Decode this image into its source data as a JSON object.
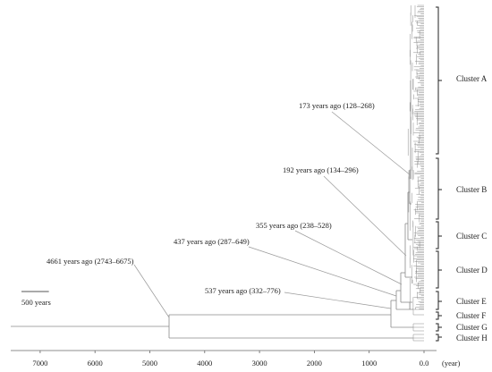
{
  "timeline": {
    "ticks": [
      {
        "value": 7000,
        "label": "7000"
      },
      {
        "value": 6000,
        "label": "6000"
      },
      {
        "value": 5000,
        "label": "5000"
      },
      {
        "value": 4000,
        "label": "4000"
      },
      {
        "value": 3000,
        "label": "3000"
      },
      {
        "value": 2000,
        "label": "2000"
      },
      {
        "value": 1000,
        "label": "1000"
      },
      {
        "value": 0,
        "label": "0.0"
      }
    ],
    "unit_label": "(year)"
  },
  "scale_bar": {
    "years": 500,
    "label": "500 years"
  },
  "clusters": [
    {
      "id": "A",
      "label": "Cluster A"
    },
    {
      "id": "B",
      "label": "Cluster B"
    },
    {
      "id": "C",
      "label": "Cluster C"
    },
    {
      "id": "D",
      "label": "Cluster D"
    },
    {
      "id": "E",
      "label": "Cluster E"
    },
    {
      "id": "F",
      "label": "Cluster F"
    },
    {
      "id": "G",
      "label": "Cluster G"
    },
    {
      "id": "H",
      "label": "Cluster H"
    }
  ],
  "divergence_annotations": [
    {
      "years_ago": 173,
      "label": "173 years ago (128–268)"
    },
    {
      "years_ago": 192,
      "label": "192 years ago (134–296)"
    },
    {
      "years_ago": 355,
      "label": "355 years ago (238–528)"
    },
    {
      "years_ago": 437,
      "label": "437 years ago (287–649)"
    },
    {
      "years_ago": 537,
      "label": "537 years ago (332–776)"
    },
    {
      "years_ago": 4661,
      "label": "4661 years ago (2743–6675)"
    }
  ]
}
